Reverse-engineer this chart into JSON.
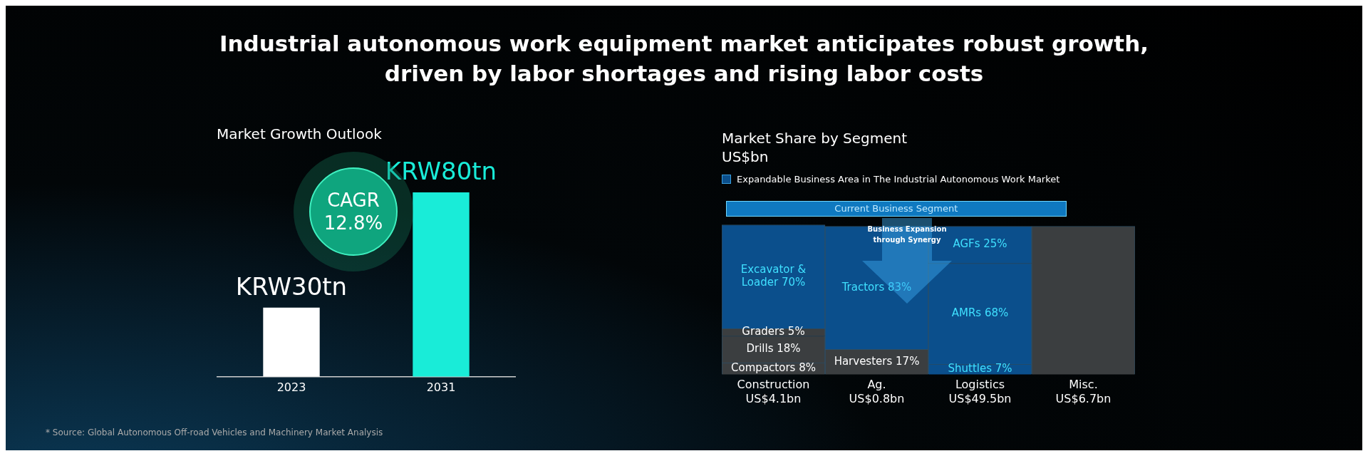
{
  "chart_data": [
    {
      "type": "bar",
      "title": "Industrial autonomous work equipment market anticipates robust growth,\ndriven by labor shortages and rising labor costs",
      "subtitle": "Market Growth Outlook",
      "categories": [
        "2023",
        "2031"
      ],
      "values": [
        30,
        80
      ],
      "colors": [
        "#ffffff",
        "#19ecd8"
      ],
      "value_labels": [
        "KRW30tn",
        "KRW80tn"
      ],
      "annotations": [
        "CAGR\n12.8%",
        "* Source: Global Autonomous Off-road Vehicles and Machinery Market Analysis"
      ],
      "grid": false,
      "legend": false
    },
    {
      "type": "bar",
      "stacked": true,
      "title": "Market Share by Segment",
      "subtitle": "US$bn",
      "categories": [
        "Construction\nUS$4.1bn",
        "Ag.\nUS$0.8bn",
        "Logistics\nUS$49.5bn",
        "Misc.\nUS$6.7bn"
      ],
      "series": [
        {
          "color": "#3b3e40",
          "values": [
            8,
            null,
            null,
            null
          ],
          "value_labels": [
            "Compactors 8%",
            null,
            null,
            null
          ]
        },
        {
          "color": "#3b3e40",
          "values": [
            18,
            null,
            null,
            null
          ],
          "value_labels": [
            "Drills 18%",
            null,
            null,
            null
          ]
        },
        {
          "color": "#3b3e40",
          "values": [
            5,
            null,
            null,
            null
          ],
          "value_labels": [
            "Graders 5%",
            null,
            null,
            null
          ]
        },
        {
          "color": "#0b4f8c",
          "values": [
            70,
            null,
            null,
            null
          ],
          "value_labels": [
            "Excavator & Loader 70%",
            null,
            null,
            null
          ]
        },
        {
          "color": "#3b3e40",
          "values": [
            null,
            17,
            null,
            null
          ],
          "value_labels": [
            null,
            "Harvesters 17%",
            null,
            null
          ]
        },
        {
          "color": "#0b4f8c",
          "values": [
            null,
            83,
            null,
            null
          ],
          "value_labels": [
            null,
            "Tractors 83%",
            null,
            null
          ]
        },
        {
          "color": "#0b4f8c",
          "values": [
            null,
            null,
            7,
            null
          ],
          "value_labels": [
            null,
            null,
            "Shuttles 7%",
            null
          ]
        },
        {
          "color": "#0b4f8c",
          "values": [
            null,
            null,
            68,
            null
          ],
          "value_labels": [
            null,
            null,
            "AMRs 68%",
            null
          ]
        },
        {
          "color": "#0b4f8c",
          "values": [
            null,
            null,
            25,
            null
          ],
          "value_labels": [
            null,
            null,
            "AGFs 25%",
            null
          ]
        },
        {
          "color": "#3b3e40",
          "values": [
            null,
            null,
            null,
            100
          ]
        }
      ],
      "annotations": [
        "Current Business Segment",
        "Business Expansion\nthrough Synergy",
        "Expandable Business Area in The Industrial Autonomous Work Market"
      ],
      "grid": false,
      "legend": false
    }
  ]
}
